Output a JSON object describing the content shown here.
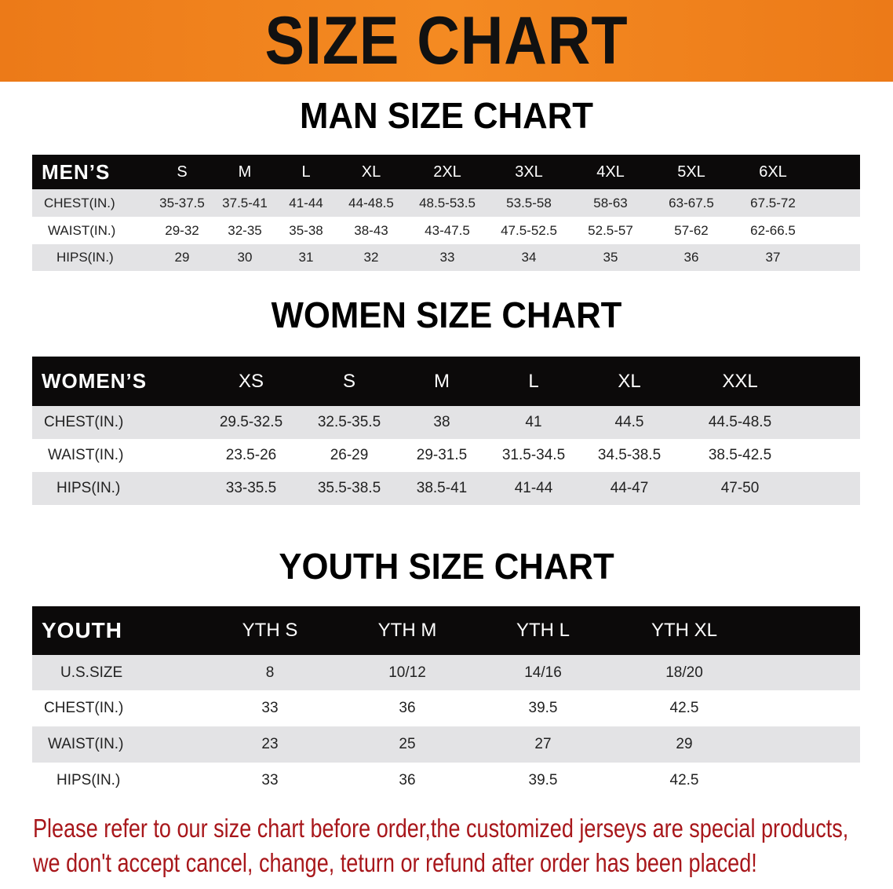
{
  "banner": {
    "title": "SIZE CHART",
    "background": "#f08020"
  },
  "men": {
    "title": "MAN SIZE CHART",
    "header_label": "MEN’S",
    "sizes": [
      "S",
      "M",
      "L",
      "XL",
      "2XL",
      "3XL",
      "4XL",
      "5XL",
      "6XL"
    ],
    "rows": [
      {
        "label": "CHEST(IN.)",
        "values": [
          "35-37.5",
          "37.5-41",
          "41-44",
          "44-48.5",
          "48.5-53.5",
          "53.5-58",
          "58-63",
          "63-67.5",
          "67.5-72"
        ]
      },
      {
        "label": "WAIST(IN.)",
        "values": [
          "29-32",
          "32-35",
          "35-38",
          "38-43",
          "43-47.5",
          "47.5-52.5",
          "52.5-57",
          "57-62",
          "62-66.5"
        ]
      },
      {
        "label": "HIPS(IN.)",
        "values": [
          "29",
          "30",
          "31",
          "32",
          "33",
          "34",
          "35",
          "36",
          "37"
        ]
      }
    ]
  },
  "women": {
    "title": "WOMEN SIZE CHART",
    "header_label": "WOMEN’S",
    "sizes": [
      "XS",
      "S",
      "M",
      "L",
      "XL",
      "XXL"
    ],
    "rows": [
      {
        "label": "CHEST(IN.)",
        "values": [
          "29.5-32.5",
          "32.5-35.5",
          "38",
          "41",
          "44.5",
          "44.5-48.5"
        ]
      },
      {
        "label": "WAIST(IN.)",
        "values": [
          "23.5-26",
          "26-29",
          "29-31.5",
          "31.5-34.5",
          "34.5-38.5",
          "38.5-42.5"
        ]
      },
      {
        "label": "HIPS(IN.)",
        "values": [
          "33-35.5",
          "35.5-38.5",
          "38.5-41",
          "41-44",
          "44-47",
          "47-50"
        ]
      }
    ]
  },
  "youth": {
    "title": "YOUTH SIZE CHART",
    "header_label": "YOUTH",
    "sizes": [
      "YTH S",
      "YTH M",
      "YTH L",
      "YTH XL"
    ],
    "rows": [
      {
        "label": "U.S.SIZE",
        "values": [
          "8",
          "10/12",
          "14/16",
          "18/20"
        ]
      },
      {
        "label": "CHEST(IN.)",
        "values": [
          "33",
          "36",
          "39.5",
          "42.5"
        ]
      },
      {
        "label": "WAIST(IN.)",
        "values": [
          "23",
          "25",
          "27",
          "29"
        ]
      },
      {
        "label": "HIPS(IN.)",
        "values": [
          "33",
          "36",
          "39.5",
          "42.5"
        ]
      }
    ]
  },
  "notice": {
    "line1": "Please refer to our size chart before order,the customized jerseys are special products,",
    "line2": "we don't accept cancel, change, teturn or refund after order has been placed!",
    "color": "#a8171b"
  }
}
